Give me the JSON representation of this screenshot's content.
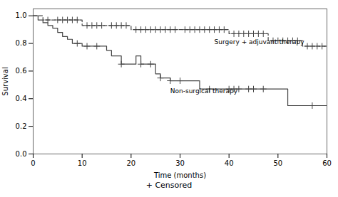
{
  "chart_data": {
    "type": "step",
    "xlabel": "Time (months)",
    "ylabel": "Survival",
    "caption": "+ Censored",
    "xlim": [
      0,
      60
    ],
    "ylim": [
      0.0,
      1.05
    ],
    "xticks": [
      0,
      10,
      20,
      30,
      40,
      50,
      60
    ],
    "yticks": [
      {
        "value": 0.0,
        "label": "0.0"
      },
      0.2,
      0.4,
      0.6,
      0.8,
      {
        "value": 1.0,
        "label": "1.0"
      }
    ],
    "grid": false,
    "series": [
      {
        "color": "#444444",
        "line_style": "dashed",
        "x": [
          0,
          1,
          2,
          3,
          4,
          5,
          6,
          7,
          8,
          9,
          10,
          11,
          12,
          13,
          14,
          15,
          16,
          17,
          18,
          19,
          20,
          21,
          22,
          23,
          24,
          25,
          26,
          27,
          28,
          29,
          30,
          31,
          32,
          33,
          34,
          35,
          36,
          37,
          38,
          39,
          40,
          41,
          42,
          43,
          44,
          45,
          46,
          47,
          48,
          49,
          50,
          51,
          52,
          53,
          54,
          55,
          56,
          57,
          58,
          59,
          60
        ],
        "values": [
          1.0,
          1.0,
          0.97,
          0.97,
          0.97,
          0.97,
          0.97,
          0.97,
          0.97,
          0.97,
          0.93,
          0.93,
          0.93,
          0.93,
          0.93,
          0.93,
          0.93,
          0.93,
          0.93,
          0.93,
          0.9,
          0.9,
          0.9,
          0.9,
          0.9,
          0.9,
          0.9,
          0.9,
          0.9,
          0.9,
          0.9,
          0.9,
          0.9,
          0.9,
          0.9,
          0.9,
          0.9,
          0.9,
          0.9,
          0.9,
          0.87,
          0.87,
          0.87,
          0.87,
          0.87,
          0.87,
          0.87,
          0.87,
          0.82,
          0.82,
          0.82,
          0.82,
          0.82,
          0.82,
          0.82,
          0.78,
          0.78,
          0.78,
          0.78,
          0.78,
          0.78
        ],
        "censored": {
          "marker": "+",
          "x": [
            3,
            5,
            6,
            7,
            8,
            9,
            11,
            12,
            13,
            14,
            16,
            17,
            18,
            19,
            21,
            22,
            23,
            24,
            25,
            26,
            27,
            28,
            29,
            31,
            32,
            33,
            34,
            35,
            36,
            37,
            38,
            39,
            41,
            42,
            43,
            44,
            45,
            46,
            47,
            49,
            50,
            51,
            52,
            53,
            54,
            56,
            57,
            58,
            59,
            60
          ],
          "values": [
            0.97,
            0.97,
            0.97,
            0.97,
            0.97,
            0.97,
            0.93,
            0.93,
            0.93,
            0.93,
            0.93,
            0.93,
            0.93,
            0.93,
            0.9,
            0.9,
            0.9,
            0.9,
            0.9,
            0.9,
            0.9,
            0.9,
            0.9,
            0.9,
            0.9,
            0.9,
            0.9,
            0.9,
            0.9,
            0.9,
            0.9,
            0.9,
            0.87,
            0.87,
            0.87,
            0.87,
            0.87,
            0.87,
            0.87,
            0.82,
            0.82,
            0.82,
            0.82,
            0.82,
            0.82,
            0.78,
            0.78,
            0.78,
            0.78,
            0.78
          ]
        }
      },
      {
        "color": "#444444",
        "line_style": "solid",
        "x": [
          0,
          1,
          2,
          3,
          4,
          5,
          6,
          7,
          8,
          9,
          10,
          11,
          13,
          15,
          16,
          18,
          20,
          21,
          22,
          24,
          25,
          26,
          28,
          30,
          34,
          36,
          40,
          41,
          42,
          44,
          45,
          47,
          52,
          55,
          57,
          60
        ],
        "values": [
          1.0,
          0.97,
          0.95,
          0.93,
          0.91,
          0.88,
          0.85,
          0.83,
          0.8,
          0.8,
          0.78,
          0.78,
          0.78,
          0.75,
          0.71,
          0.65,
          0.65,
          0.71,
          0.65,
          0.65,
          0.58,
          0.55,
          0.53,
          0.53,
          0.47,
          0.47,
          0.47,
          0.47,
          0.47,
          0.47,
          0.47,
          0.47,
          0.35,
          0.35,
          0.35,
          0.35
        ],
        "censored": {
          "marker": "+",
          "x": [
            9,
            11,
            13,
            18,
            22,
            24,
            26,
            28,
            30,
            36,
            40,
            41,
            42,
            44,
            45,
            47,
            57,
            60
          ],
          "values": [
            0.8,
            0.78,
            0.78,
            0.65,
            0.65,
            0.65,
            0.55,
            0.53,
            0.53,
            0.47,
            0.47,
            0.47,
            0.47,
            0.47,
            0.47,
            0.47,
            0.35,
            0.35
          ]
        }
      }
    ],
    "annotations": [
      {
        "text": "Surgery + adjuvant therapy",
        "x": 37,
        "y": 0.795
      },
      {
        "text": "Non-surgical therapy",
        "x": 28,
        "y": 0.44
      }
    ]
  }
}
